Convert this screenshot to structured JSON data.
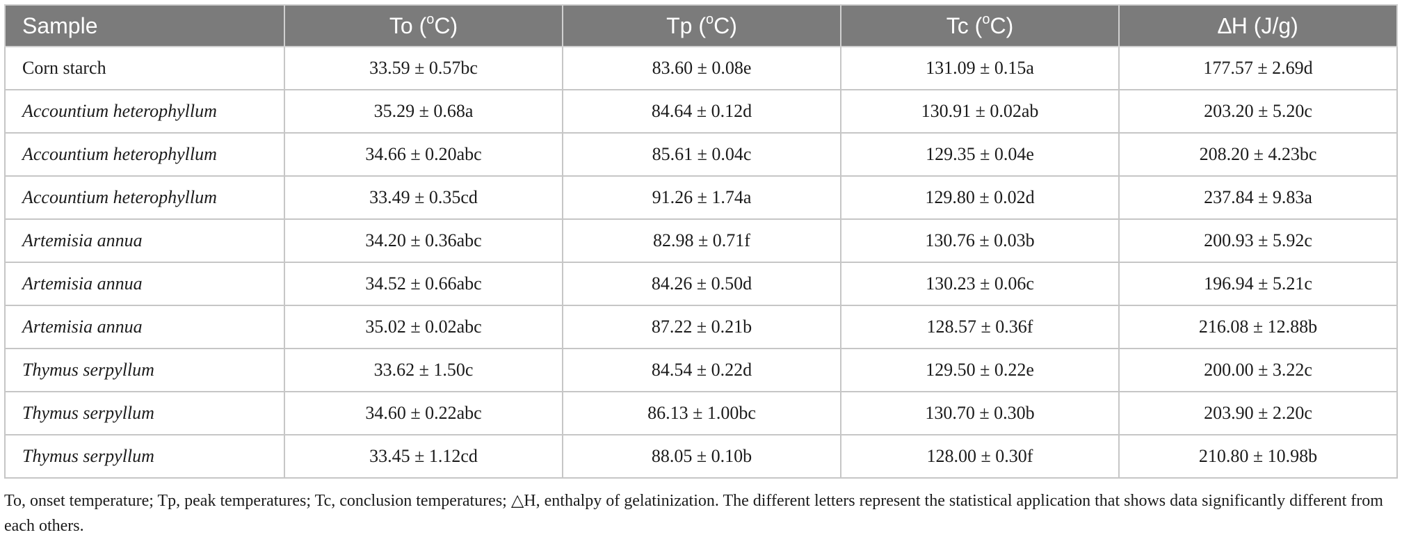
{
  "table": {
    "headers": [
      {
        "label": "Sample"
      },
      {
        "label": "To (",
        "sup": "o",
        "suffix": "C)"
      },
      {
        "label": "Tp (",
        "sup": "o",
        "suffix": "C)"
      },
      {
        "label": "Tc (",
        "sup": "o",
        "suffix": "C)"
      },
      {
        "label": "∆H (J/g)"
      }
    ],
    "rows": [
      {
        "sample": "Corn starch",
        "italic": false,
        "to": "33.59 ± 0.57bc",
        "tp": "83.60 ± 0.08e",
        "tc": "131.09 ± 0.15a",
        "dh": "177.57 ± 2.69d"
      },
      {
        "sample": "Accountium heterophyllum",
        "italic": true,
        "to": "35.29 ± 0.68a",
        "tp": "84.64 ± 0.12d",
        "tc": "130.91 ± 0.02ab",
        "dh": "203.20 ± 5.20c"
      },
      {
        "sample": "Accountium heterophyllum",
        "italic": true,
        "to": "34.66 ± 0.20abc",
        "tp": "85.61 ± 0.04c",
        "tc": "129.35 ± 0.04e",
        "dh": "208.20 ± 4.23bc"
      },
      {
        "sample": "Accountium heterophyllum",
        "italic": true,
        "to": "33.49 ± 0.35cd",
        "tp": "91.26 ± 1.74a",
        "tc": "129.80 ± 0.02d",
        "dh": "237.84 ± 9.83a"
      },
      {
        "sample": "Artemisia annua",
        "italic": true,
        "to": "34.20 ± 0.36abc",
        "tp": "82.98 ± 0.71f",
        "tc": "130.76 ± 0.03b",
        "dh": "200.93 ± 5.92c"
      },
      {
        "sample": "Artemisia annua",
        "italic": true,
        "to": "34.52 ± 0.66abc",
        "tp": "84.26 ± 0.50d",
        "tc": "130.23 ± 0.06c",
        "dh": "196.94 ± 5.21c"
      },
      {
        "sample": "Artemisia annua",
        "italic": true,
        "to": "35.02 ± 0.02abc",
        "tp": "87.22 ± 0.21b",
        "tc": "128.57 ± 0.36f",
        "dh": "216.08 ± 12.88b"
      },
      {
        "sample": "Thymus serpyllum",
        "italic": true,
        "to": "33.62 ± 1.50c",
        "tp": "84.54 ± 0.22d",
        "tc": "129.50 ± 0.22e",
        "dh": "200.00 ± 3.22c"
      },
      {
        "sample": "Thymus serpyllum",
        "italic": true,
        "to": "34.60 ± 0.22abc",
        "tp": "86.13 ± 1.00bc",
        "tc": "130.70 ± 0.30b",
        "dh": "203.90 ± 2.20c"
      },
      {
        "sample": "Thymus serpyllum",
        "italic": true,
        "to": "33.45 ± 1.12cd",
        "tp": "88.05 ± 0.10b",
        "tc": "128.00 ± 0.30f",
        "dh": "210.80 ± 10.98b"
      }
    ]
  },
  "footnote": "To, onset temperature; Tp, peak temperatures; Tc, conclusion temperatures; △H, enthalpy of gelatinization. The different letters represent the statistical application that shows data significantly different from each others.",
  "colors": {
    "header_bg": "#7b7b7b",
    "header_text": "#ffffff",
    "grid": "#c6c6c6"
  }
}
